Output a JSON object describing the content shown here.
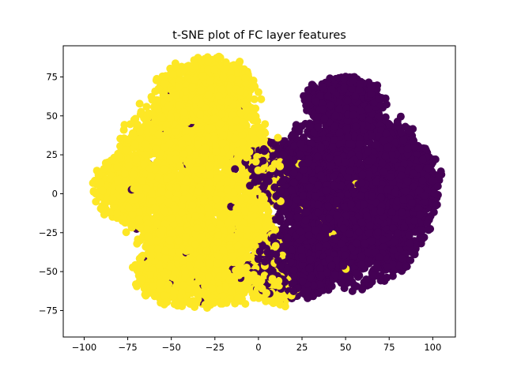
{
  "chart_data": {
    "type": "scatter",
    "title": "t-SNE plot of FC layer features",
    "xlabel": "",
    "ylabel": "",
    "xlim": [
      -112,
      113
    ],
    "ylim": [
      -92,
      95
    ],
    "xticks": [
      -100,
      -75,
      -50,
      -25,
      0,
      25,
      50,
      75,
      100
    ],
    "yticks": [
      -75,
      -50,
      -25,
      0,
      25,
      50,
      75
    ],
    "grid": false,
    "legend": "none",
    "series": [
      {
        "color": "#fde725",
        "clusters": [
          {
            "cx": -35,
            "cy": 10,
            "rx": 45,
            "ry": 55,
            "n": 2600
          },
          {
            "cx": -30,
            "cy": 65,
            "rx": 28,
            "ry": 22,
            "n": 700
          },
          {
            "cx": -80,
            "cy": 5,
            "rx": 14,
            "ry": 20,
            "n": 300
          },
          {
            "cx": -35,
            "cy": -50,
            "rx": 35,
            "ry": 22,
            "n": 900
          },
          {
            "cx": -5,
            "cy": -40,
            "rx": 20,
            "ry": 28,
            "n": 350
          },
          {
            "cx": 10,
            "cy": -60,
            "rx": 12,
            "ry": 12,
            "n": 90
          }
        ],
        "sprinkles": [
          {
            "cx": 45,
            "cy": -15,
            "rx": 45,
            "ry": 45,
            "n": 20
          }
        ]
      },
      {
        "color": "#440154",
        "clusters": [
          {
            "cx": 55,
            "cy": 0,
            "rx": 42,
            "ry": 55,
            "n": 3200
          },
          {
            "cx": 50,
            "cy": 60,
            "rx": 22,
            "ry": 15,
            "n": 500
          },
          {
            "cx": 90,
            "cy": 5,
            "rx": 14,
            "ry": 25,
            "n": 350
          },
          {
            "cx": 20,
            "cy": -45,
            "rx": 25,
            "ry": 22,
            "n": 600
          },
          {
            "cx": 10,
            "cy": 15,
            "rx": 16,
            "ry": 18,
            "n": 300
          }
        ],
        "sprinkles": [
          {
            "cx": -35,
            "cy": 0,
            "rx": 45,
            "ry": 70,
            "n": 45
          }
        ]
      }
    ]
  }
}
